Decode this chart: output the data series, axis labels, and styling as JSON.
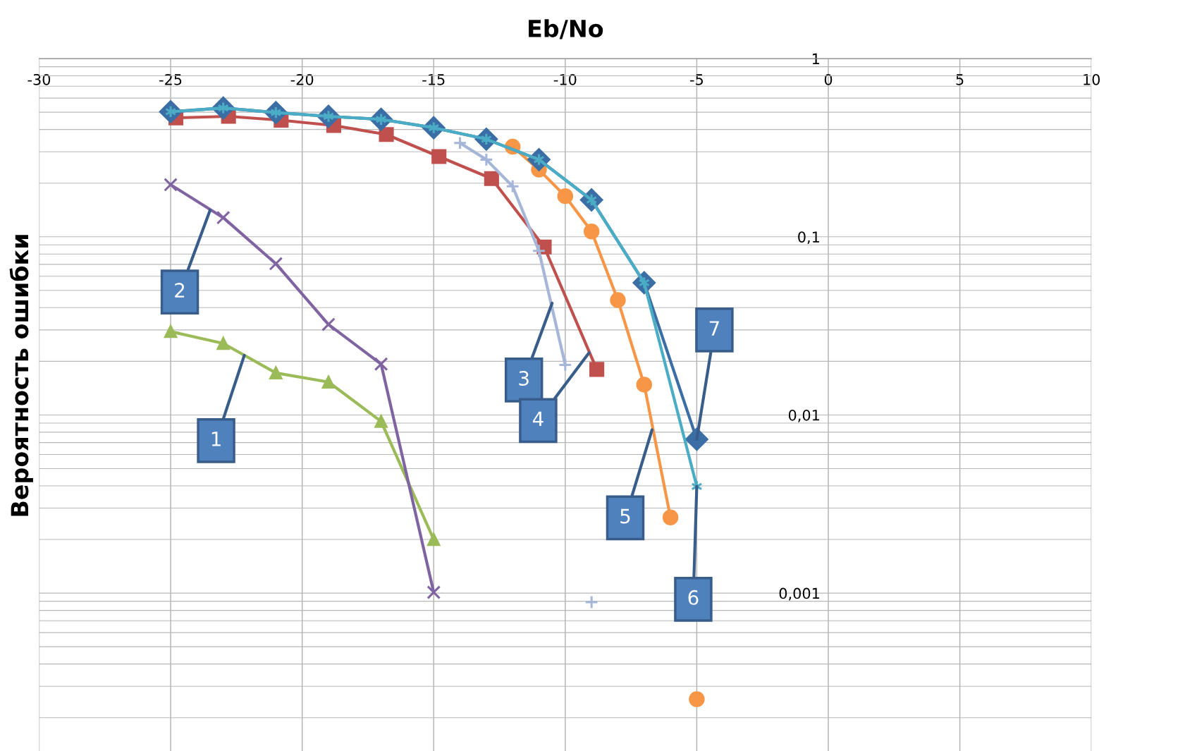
{
  "chart_data": {
    "type": "line",
    "xlabel": "Eb/No",
    "ylabel": "Вероятность ошибки",
    "log": "y",
    "xlim": [
      -30,
      10
    ],
    "ylim": [
      0.00013,
      1
    ],
    "xticks": [
      -30,
      -25,
      -20,
      -15,
      -10,
      -5,
      0,
      5,
      10
    ],
    "yticks": [
      {
        "value": 0.001,
        "label": "0,001"
      },
      {
        "value": 0.01,
        "label": "0,01"
      },
      {
        "value": 0.1,
        "label": "0,1"
      },
      1
    ],
    "grid": true,
    "series": [
      {
        "color": "#9bbb59",
        "marker": "triangle",
        "x": [
          -25,
          -23,
          -21,
          -19,
          -17,
          -15
        ],
        "values": [
          0.0294,
          0.0252,
          0.0172,
          0.0153,
          0.0092,
          0.002
        ]
      },
      {
        "color": "#8064a2",
        "marker": "x",
        "x": [
          -25,
          -23,
          -21,
          -19,
          -17,
          -15
        ],
        "values": [
          0.196,
          0.128,
          0.0706,
          0.0322,
          0.0193,
          0.00101
        ]
      },
      {
        "color": "#a5b6d8",
        "marker": "plus",
        "x": [
          -14,
          -13,
          -12,
          -11,
          -10
        ],
        "values": [
          0.336,
          0.271,
          0.192,
          0.0834,
          0.0191
        ]
      },
      {
        "color": "#a5b6d8",
        "marker": "plus",
        "type": "scatter",
        "x": [
          -9
        ],
        "values": [
          0.00089
        ]
      },
      {
        "color": "#c0504d",
        "marker": "square",
        "x": [
          -24.8,
          -22.8,
          -20.8,
          -18.8,
          -16.8,
          -14.8,
          -12.8,
          -10.8,
          -8.8
        ],
        "values": [
          0.465,
          0.474,
          0.451,
          0.421,
          0.375,
          0.282,
          0.212,
          0.0876,
          0.018
        ]
      },
      {
        "color": "#f79646",
        "marker": "circle",
        "x": [
          -12,
          -11,
          -10,
          -9,
          -8,
          -7,
          -6
        ],
        "values": [
          0.32,
          0.238,
          0.169,
          0.107,
          0.0441,
          0.0148,
          0.00266
        ]
      },
      {
        "color": "#f79646",
        "marker": "circle",
        "type": "scatter",
        "x": [
          -5
        ],
        "values": [
          0.000254
        ]
      },
      {
        "color": "#3a6ea5",
        "marker": "diamond",
        "x": [
          -25,
          -23,
          -21,
          -19,
          -17,
          -15,
          -13,
          -11,
          -9,
          -7,
          -5
        ],
        "values": [
          0.503,
          0.528,
          0.498,
          0.474,
          0.456,
          0.409,
          0.353,
          0.271,
          0.161,
          0.0552,
          0.0073
        ]
      },
      {
        "color": "#4bacc6",
        "marker": "cross",
        "x": [
          -25,
          -23,
          -21,
          -19,
          -17,
          -15,
          -13,
          -11,
          -9,
          -7,
          -5
        ],
        "values": [
          0.503,
          0.528,
          0.498,
          0.474,
          0.456,
          0.409,
          0.353,
          0.271,
          0.161,
          0.0552,
          0.00397
        ]
      }
    ],
    "annotations": [
      {
        "text": "1",
        "x": -22.2,
        "y": 0.0216
      },
      {
        "text": "2",
        "x": -23.5,
        "y": 0.141
      },
      {
        "text": "3",
        "x": -10.5,
        "y": 0.0424
      },
      {
        "text": "4",
        "x": -9.1,
        "y": 0.0223
      },
      {
        "text": "5",
        "x": -6.7,
        "y": 0.00826
      },
      {
        "text": "6",
        "x": -5,
        "y": 0.00397
      },
      {
        "text": "7",
        "x": -5,
        "y": 0.0073
      }
    ]
  }
}
